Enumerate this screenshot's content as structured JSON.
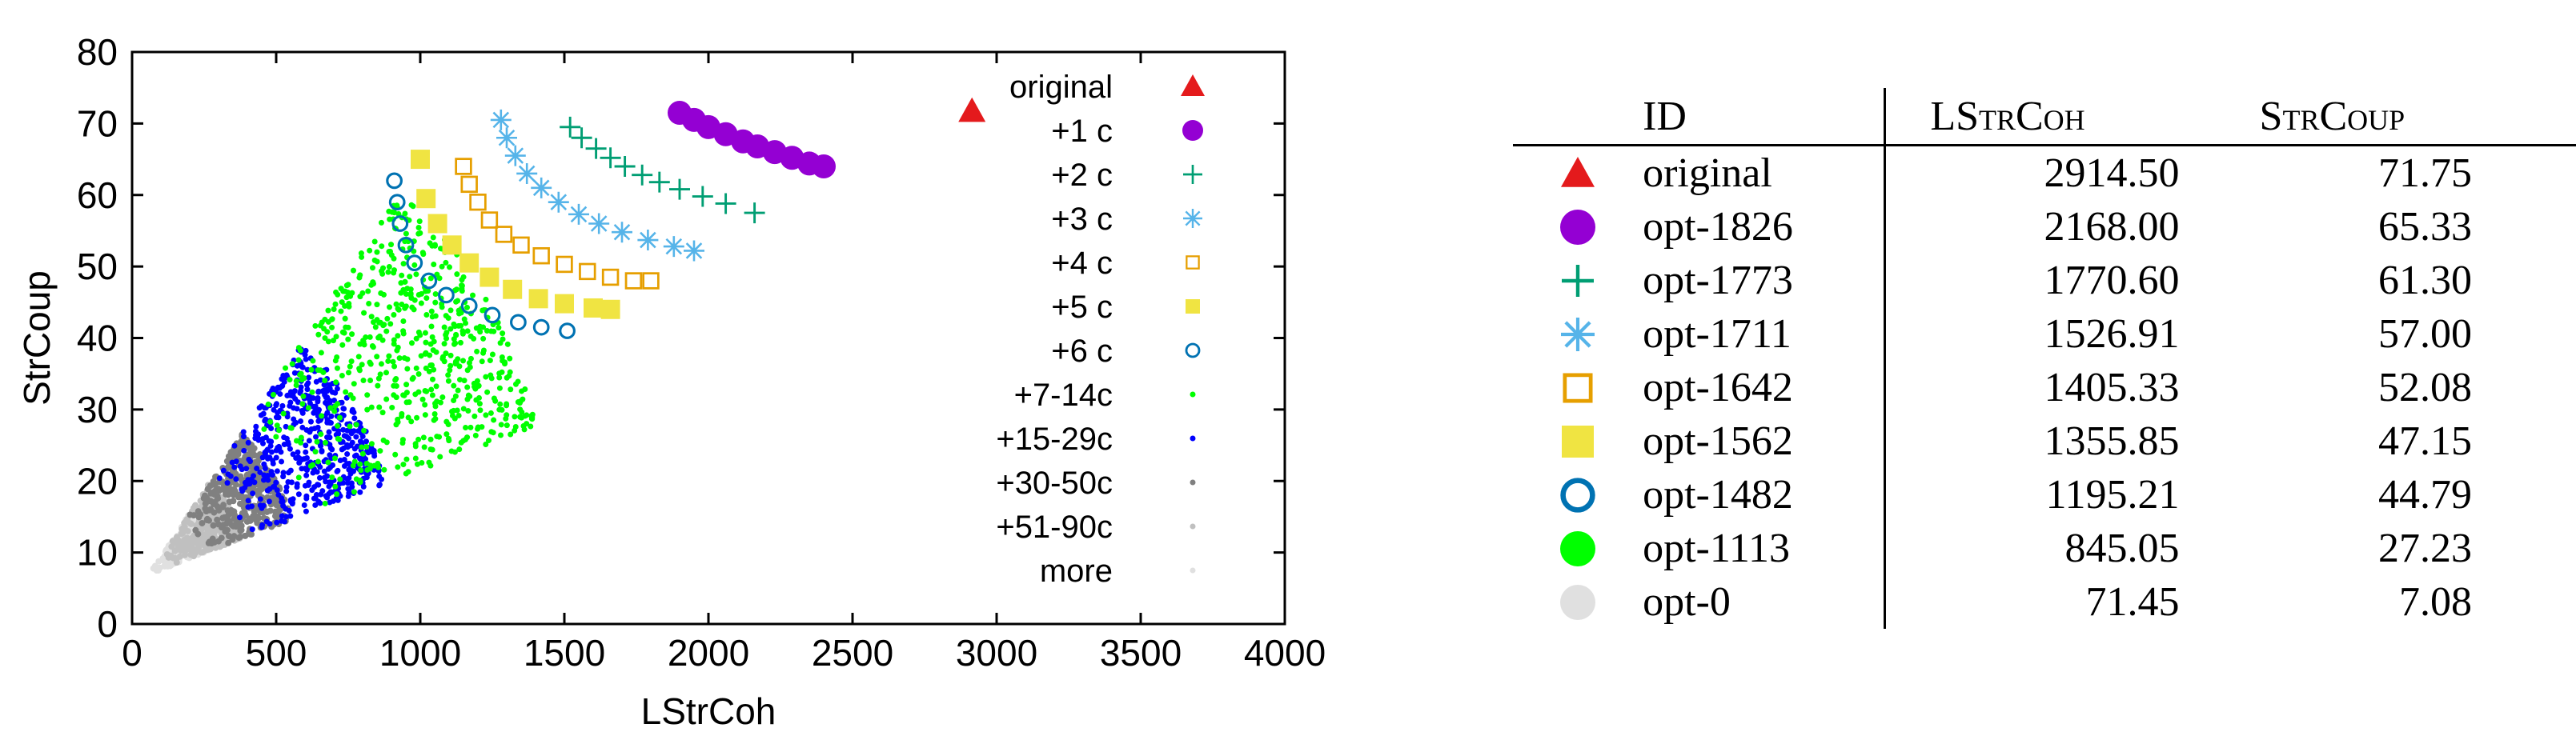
{
  "chart_data": {
    "type": "scatter",
    "xlabel": "LStrCoh",
    "ylabel": "StrCoup",
    "xlim": [
      0,
      4000
    ],
    "ylim": [
      0,
      80
    ],
    "xticks": [
      0,
      500,
      1000,
      1500,
      2000,
      2500,
      3000,
      3500,
      4000
    ],
    "yticks": [
      0,
      10,
      20,
      30,
      40,
      50,
      60,
      70,
      80
    ],
    "grid": false,
    "legend_position": "top-right",
    "series": [
      {
        "name": "original",
        "marker": "triangle",
        "color": "#e41a1c",
        "points": [
          [
            2914.5,
            71.75
          ]
        ]
      },
      {
        "name": "+1 c",
        "marker": "circle-filled",
        "color": "#9400d3",
        "points": [
          [
            1900,
            71.5
          ],
          [
            1950,
            70.5
          ],
          [
            2000,
            69.5
          ],
          [
            2060,
            68.5
          ],
          [
            2120,
            67.5
          ],
          [
            2170,
            66.8
          ],
          [
            2230,
            66
          ],
          [
            2290,
            65.2
          ],
          [
            2350,
            64.4
          ],
          [
            2400,
            64
          ]
        ]
      },
      {
        "name": "+2 c",
        "marker": "plus",
        "color": "#009e73",
        "points": [
          [
            1520,
            69.5
          ],
          [
            1560,
            68
          ],
          [
            1610,
            66.5
          ],
          [
            1660,
            65.2
          ],
          [
            1710,
            64
          ],
          [
            1770,
            62.8
          ],
          [
            1830,
            61.8
          ],
          [
            1900,
            60.8
          ],
          [
            1980,
            59.8
          ],
          [
            2060,
            58.8
          ],
          [
            2160,
            57.5
          ]
        ]
      },
      {
        "name": "+3 c",
        "marker": "asterisk",
        "color": "#56b4e9",
        "points": [
          [
            1280,
            70.5
          ],
          [
            1300,
            68
          ],
          [
            1330,
            65.5
          ],
          [
            1370,
            63
          ],
          [
            1420,
            61
          ],
          [
            1480,
            59
          ],
          [
            1550,
            57.3
          ],
          [
            1620,
            56
          ],
          [
            1700,
            54.8
          ],
          [
            1790,
            53.7
          ],
          [
            1880,
            52.8
          ],
          [
            1950,
            52.2
          ]
        ]
      },
      {
        "name": "+4 c",
        "marker": "square-open",
        "color": "#e69f00",
        "points": [
          [
            1150,
            64
          ],
          [
            1170,
            61.5
          ],
          [
            1200,
            59
          ],
          [
            1240,
            56.5
          ],
          [
            1290,
            54.5
          ],
          [
            1350,
            53
          ],
          [
            1420,
            51.5
          ],
          [
            1500,
            50.3
          ],
          [
            1580,
            49.3
          ],
          [
            1660,
            48.5
          ],
          [
            1740,
            48
          ],
          [
            1800,
            48
          ]
        ]
      },
      {
        "name": "+5 c",
        "marker": "square-filled",
        "color": "#f0e442",
        "points": [
          [
            1000,
            65
          ],
          [
            1020,
            59.5
          ],
          [
            1060,
            56
          ],
          [
            1110,
            53
          ],
          [
            1170,
            50.5
          ],
          [
            1240,
            48.5
          ],
          [
            1320,
            46.8
          ],
          [
            1410,
            45.5
          ],
          [
            1500,
            44.8
          ],
          [
            1600,
            44.2
          ],
          [
            1660,
            44
          ]
        ]
      },
      {
        "name": "+6 c",
        "marker": "circle-open",
        "color": "#0072b2",
        "points": [
          [
            910,
            62
          ],
          [
            920,
            59
          ],
          [
            930,
            56
          ],
          [
            950,
            53
          ],
          [
            980,
            50.5
          ],
          [
            1030,
            48
          ],
          [
            1090,
            46
          ],
          [
            1170,
            44.5
          ],
          [
            1250,
            43.2
          ],
          [
            1340,
            42.2
          ],
          [
            1420,
            41.5
          ],
          [
            1510,
            41
          ]
        ]
      },
      {
        "name": "+7-14c",
        "marker": "dot",
        "color": "#00ff00",
        "points": []
      },
      {
        "name": "+15-29c",
        "marker": "dot",
        "color": "#0000ff",
        "points": []
      },
      {
        "name": "+30-50c",
        "marker": "dot",
        "color": "#808080",
        "points": []
      },
      {
        "name": "+51-90c",
        "marker": "dot",
        "color": "#c0c0c0",
        "points": []
      },
      {
        "name": "more",
        "marker": "dot",
        "color": "#e0e0e0",
        "points": []
      }
    ]
  },
  "table": {
    "headers": {
      "id": "ID",
      "lstrcoh": "LStrCoh",
      "strcoup": "StrCoup"
    },
    "rows": [
      {
        "marker": "triangle",
        "color": "#e41a1c",
        "id": "original",
        "lstrcoh": "2914.50",
        "strcoup": "71.75"
      },
      {
        "marker": "circle-filled",
        "color": "#9400d3",
        "id": "opt-1826",
        "lstrcoh": "2168.00",
        "strcoup": "65.33"
      },
      {
        "marker": "plus",
        "color": "#009e73",
        "id": "opt-1773",
        "lstrcoh": "1770.60",
        "strcoup": "61.30"
      },
      {
        "marker": "asterisk",
        "color": "#56b4e9",
        "id": "opt-1711",
        "lstrcoh": "1526.91",
        "strcoup": "57.00"
      },
      {
        "marker": "square-open",
        "color": "#e69f00",
        "id": "opt-1642",
        "lstrcoh": "1405.33",
        "strcoup": "52.08"
      },
      {
        "marker": "square-filled",
        "color": "#f0e442",
        "id": "opt-1562",
        "lstrcoh": "1355.85",
        "strcoup": "47.15"
      },
      {
        "marker": "circle-open",
        "color": "#0072b2",
        "id": "opt-1482",
        "lstrcoh": "1195.21",
        "strcoup": "44.79"
      },
      {
        "marker": "circle-filled",
        "color": "#00ff00",
        "id": "opt-1113",
        "lstrcoh": "845.05",
        "strcoup": "27.23"
      },
      {
        "marker": "circle-filled",
        "color": "#e0e0e0",
        "id": "opt-0",
        "lstrcoh": "71.45",
        "strcoup": "7.08"
      }
    ]
  }
}
